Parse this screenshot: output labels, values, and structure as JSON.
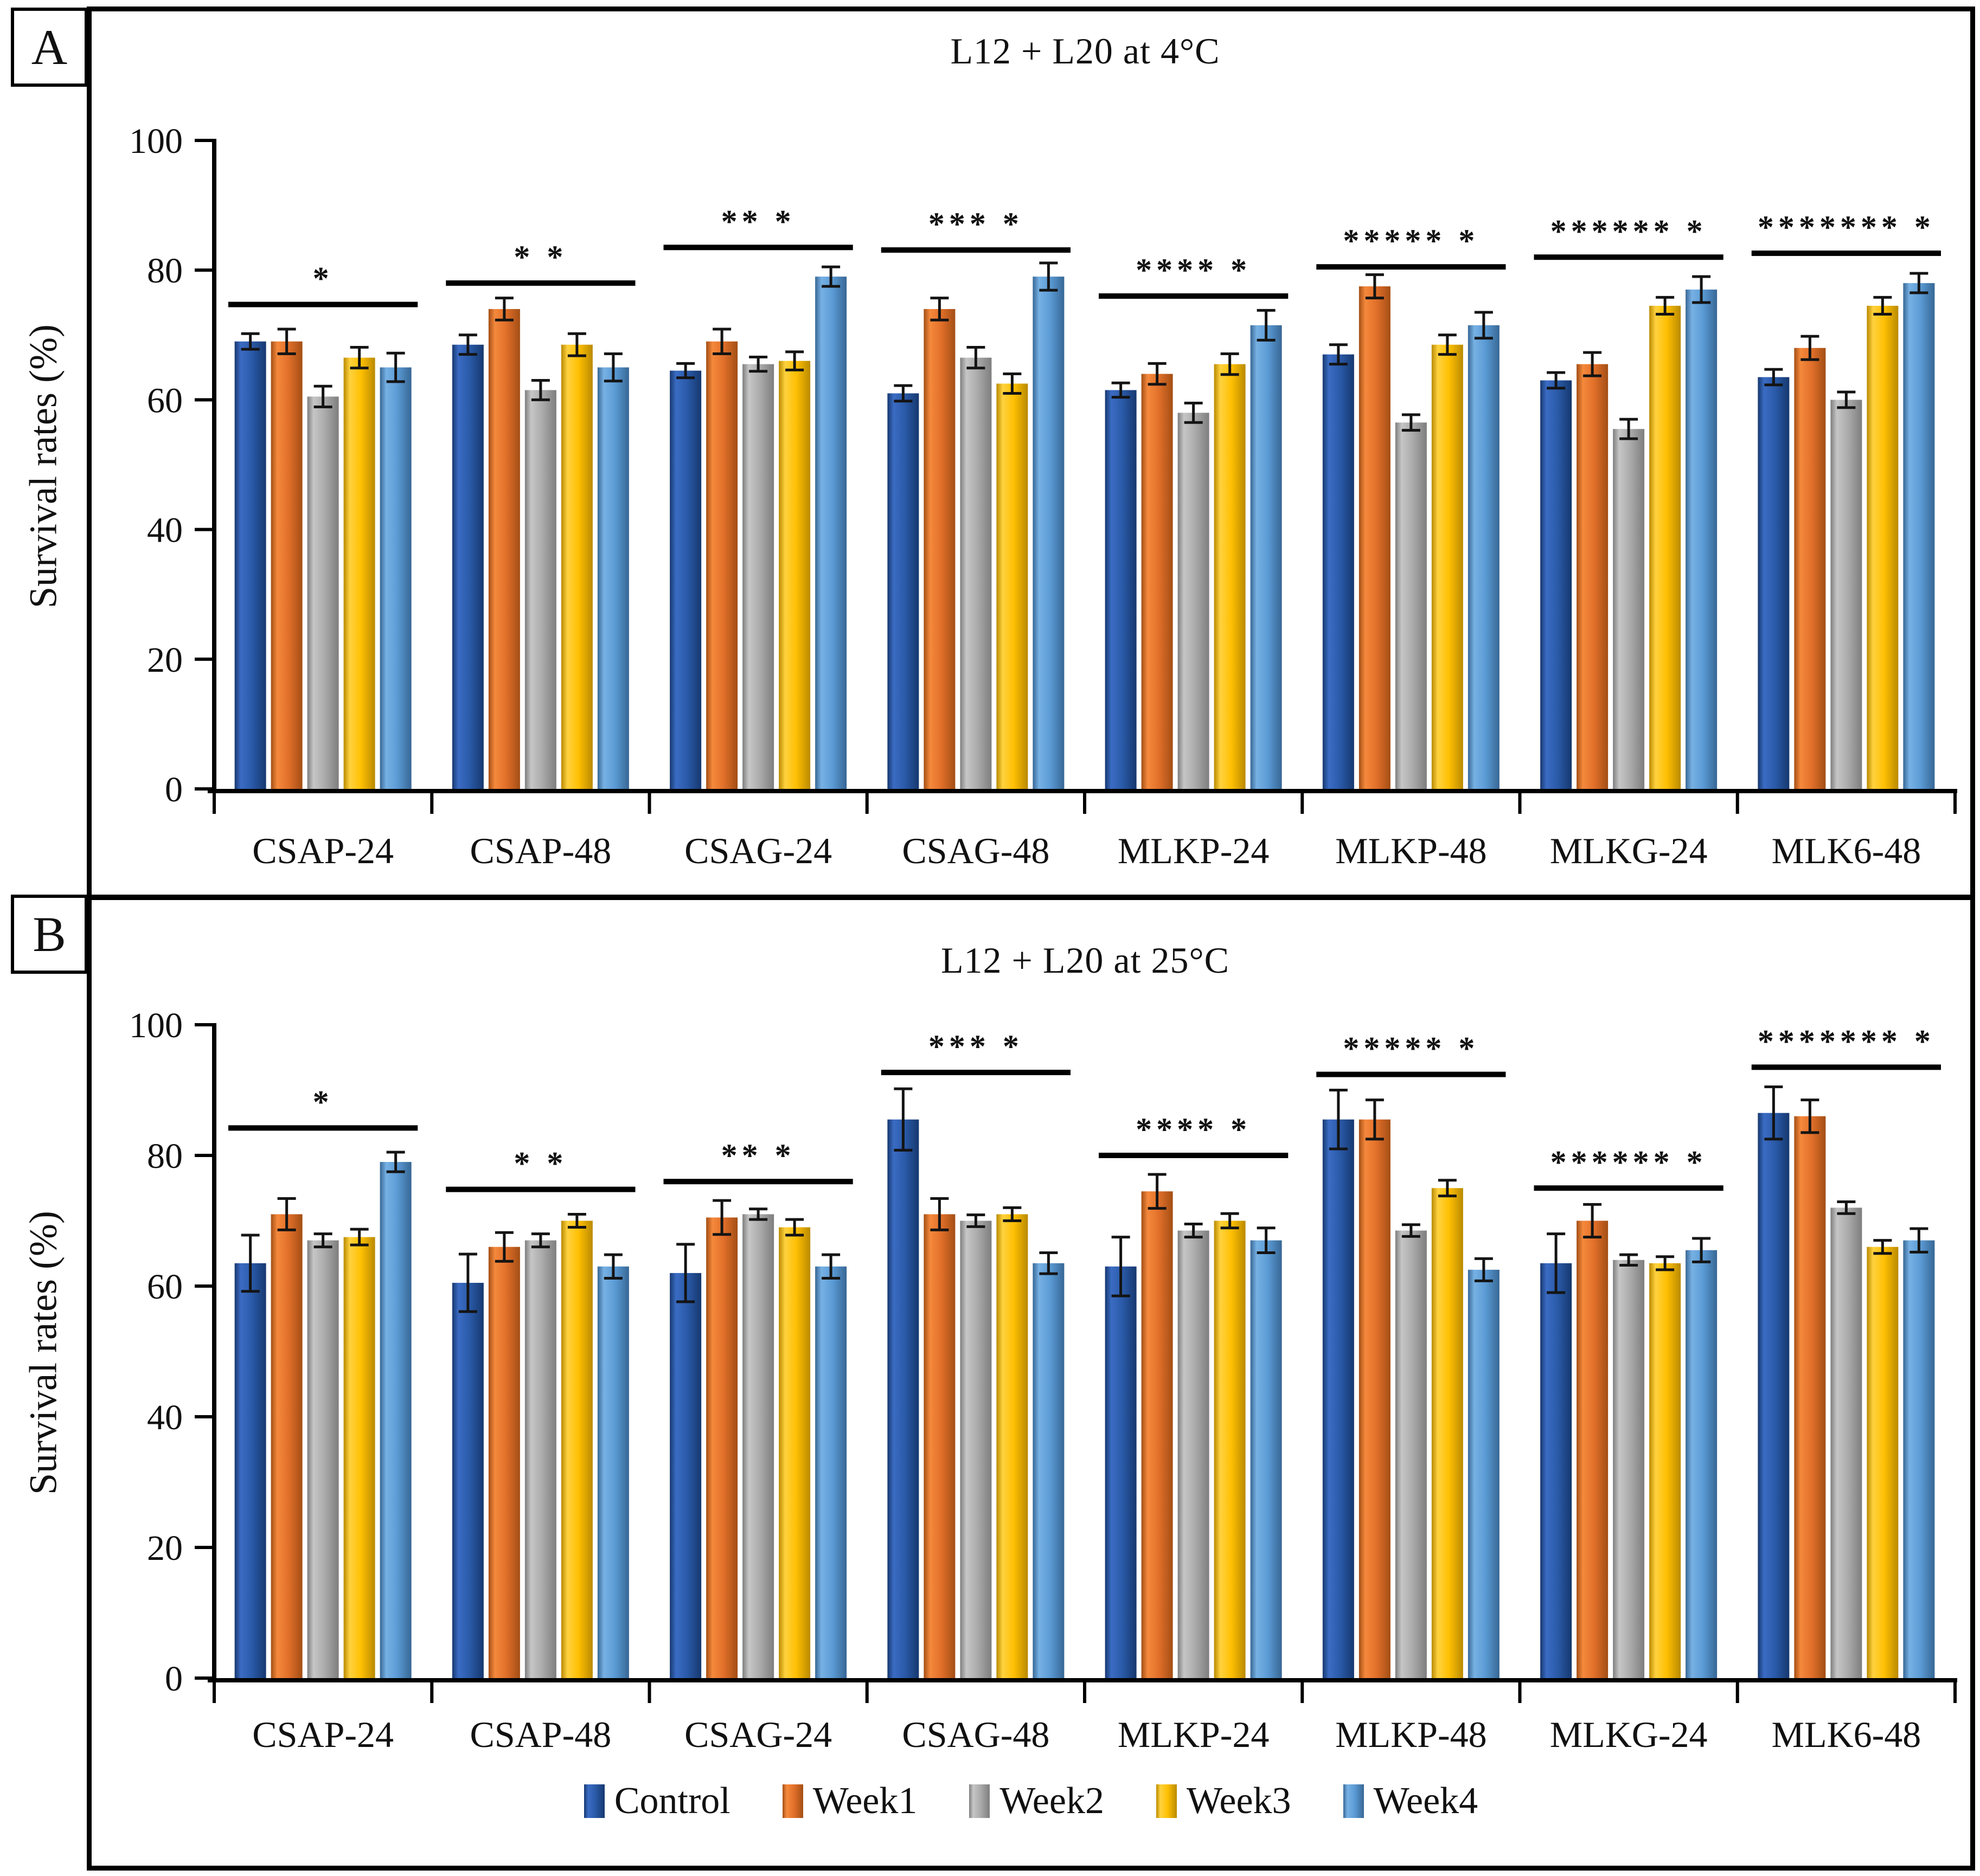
{
  "figure": {
    "panel_a_letter": "A",
    "panel_b_letter": "B",
    "ylabel": "Survival rates (%)",
    "legend_labels": [
      "Control",
      "Week1",
      "Week2",
      "Week3",
      "Week4"
    ],
    "series_colors": [
      {
        "name": "control",
        "base": "#2A5AA8",
        "light": "#3B6CC4",
        "dark": "#16386F"
      },
      {
        "name": "week1",
        "base": "#E2702A",
        "light": "#F5893C",
        "dark": "#A34E15"
      },
      {
        "name": "week2",
        "base": "#ABABAB",
        "light": "#C6C6C6",
        "dark": "#7E7E7E"
      },
      {
        "name": "week3",
        "base": "#FFC003",
        "light": "#FFD23F",
        "dark": "#B98A00"
      },
      {
        "name": "week4",
        "base": "#5B9BD5",
        "light": "#77B1E4",
        "dark": "#376795"
      }
    ],
    "error_bar_color": "#141414",
    "axis_color": "#000000"
  },
  "chart_data": [
    {
      "type": "bar",
      "panel": "A",
      "title": "L12 + L20 at 4°C",
      "ylabel": "Survival rates (%)",
      "ylim": [
        0,
        100
      ],
      "yticks": [
        0,
        20,
        40,
        60,
        80,
        100
      ],
      "grid": false,
      "legend_position": "bottom-shared",
      "categories": [
        "CSAP-24",
        "CSAP-48",
        "CSAG-24",
        "CSAG-48",
        "MLKP-24",
        "MLKP-48",
        "MLKG-24",
        "MLK6-48"
      ],
      "series": [
        {
          "name": "Control",
          "values": [
            69,
            68.5,
            64.5,
            61,
            61.5,
            67,
            63,
            63.5
          ],
          "errors": [
            1.2,
            1.5,
            1.1,
            1.2,
            1.1,
            1.5,
            1.2,
            1.2
          ]
        },
        {
          "name": "Week1",
          "values": [
            69,
            74,
            69,
            74,
            64,
            77.5,
            65.5,
            68
          ],
          "errors": [
            1.9,
            1.7,
            1.9,
            1.7,
            1.6,
            1.8,
            1.8,
            1.8
          ]
        },
        {
          "name": "Week2",
          "values": [
            60.5,
            61.5,
            65.5,
            66.5,
            58,
            56.5,
            55.5,
            60
          ],
          "errors": [
            1.6,
            1.5,
            1.1,
            1.6,
            1.5,
            1.2,
            1.5,
            1.2
          ]
        },
        {
          "name": "Week3",
          "values": [
            66.5,
            68.5,
            66,
            62.5,
            65.5,
            68.5,
            74.5,
            74.5
          ],
          "errors": [
            1.6,
            1.7,
            1.4,
            1.5,
            1.6,
            1.5,
            1.3,
            1.3
          ]
        },
        {
          "name": "Week4",
          "values": [
            65,
            65,
            79,
            79,
            71.5,
            71.5,
            77,
            78
          ],
          "errors": [
            2.2,
            2.1,
            1.5,
            2.1,
            2.3,
            2.0,
            2.0,
            1.5
          ]
        }
      ],
      "significance": [
        {
          "label": "*",
          "y": 74.7
        },
        {
          "label": "* *",
          "y": 78.0
        },
        {
          "label": "** *",
          "y": 83.5
        },
        {
          "label": "*** *",
          "y": 83.1
        },
        {
          "label": "**** *",
          "y": 76.0
        },
        {
          "label": "***** *",
          "y": 80.5
        },
        {
          "label": "****** *",
          "y": 82.0
        },
        {
          "label": "******* *",
          "y": 82.6
        }
      ]
    },
    {
      "type": "bar",
      "panel": "B",
      "title": "L12 + L20 at 25°C",
      "ylabel": "Survival rates (%)",
      "ylim": [
        0,
        100
      ],
      "yticks": [
        0,
        20,
        40,
        60,
        80,
        100
      ],
      "grid": false,
      "legend_position": "bottom-shared",
      "categories": [
        "CSAP-24",
        "CSAP-48",
        "CSAG-24",
        "CSAG-48",
        "MLKP-24",
        "MLKP-48",
        "MLKG-24",
        "MLK6-48"
      ],
      "series": [
        {
          "name": "Control",
          "values": [
            63.5,
            60.5,
            62,
            85.5,
            63,
            85.5,
            63.5,
            86.5
          ],
          "errors": [
            4.3,
            4.4,
            4.4,
            4.7,
            4.5,
            4.5,
            4.5,
            4.0
          ]
        },
        {
          "name": "Week1",
          "values": [
            71,
            66,
            70.5,
            71,
            74.5,
            85.5,
            70,
            86
          ],
          "errors": [
            2.4,
            2.2,
            2.6,
            2.4,
            2.6,
            3.0,
            2.5,
            2.5
          ]
        },
        {
          "name": "Week2",
          "values": [
            67,
            67,
            71,
            70,
            68.5,
            68.5,
            64,
            72
          ],
          "errors": [
            1.0,
            1.0,
            0.8,
            0.9,
            1.0,
            0.9,
            0.8,
            0.9
          ]
        },
        {
          "name": "Week3",
          "values": [
            67.5,
            70,
            69,
            71,
            70,
            75,
            63.5,
            66
          ],
          "errors": [
            1.2,
            1.0,
            1.2,
            1.0,
            1.1,
            1.2,
            1.0,
            1.0
          ]
        },
        {
          "name": "Week4",
          "values": [
            79,
            63,
            63,
            63.5,
            67,
            62.5,
            65.5,
            67
          ],
          "errors": [
            1.5,
            1.8,
            1.8,
            1.6,
            1.9,
            1.7,
            1.8,
            1.8
          ]
        }
      ],
      "significance": [
        {
          "label": "*",
          "y": 84.2
        },
        {
          "label": "* *",
          "y": 74.8
        },
        {
          "label": "** *",
          "y": 76.0
        },
        {
          "label": "*** *",
          "y": 92.7
        },
        {
          "label": "**** *",
          "y": 80.0
        },
        {
          "label": "***** *",
          "y": 92.4
        },
        {
          "label": "****** *",
          "y": 75.0
        },
        {
          "label": "******* *",
          "y": 93.5
        }
      ]
    }
  ]
}
